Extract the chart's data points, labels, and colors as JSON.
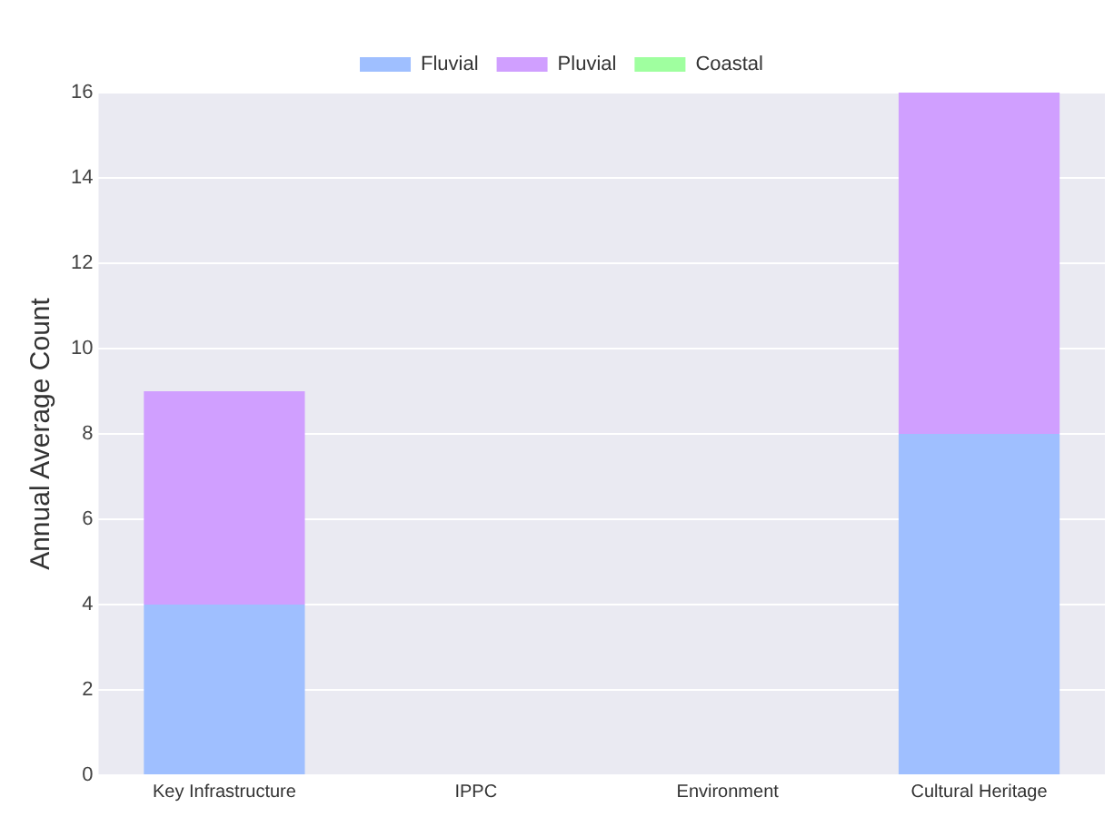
{
  "chart_data": {
    "type": "bar",
    "stacked": true,
    "ylabel": "Annual Average Count",
    "categories": [
      "Key Infrastructure",
      "IPPC",
      "Environment",
      "Cultural Heritage"
    ],
    "series": [
      {
        "name": "Fluvial",
        "color": "#9fbfff",
        "values": [
          4,
          0,
          0,
          8
        ]
      },
      {
        "name": "Pluvial",
        "color": "#d09fff",
        "values": [
          5,
          0,
          0,
          8
        ]
      },
      {
        "name": "Coastal",
        "color": "#9fff9f",
        "values": [
          0,
          0,
          0,
          0
        ]
      }
    ],
    "ylim": [
      0,
      16
    ],
    "yticks": [
      0,
      2,
      4,
      6,
      8,
      10,
      12,
      14,
      16
    ],
    "grid": "y",
    "legend": "top"
  }
}
